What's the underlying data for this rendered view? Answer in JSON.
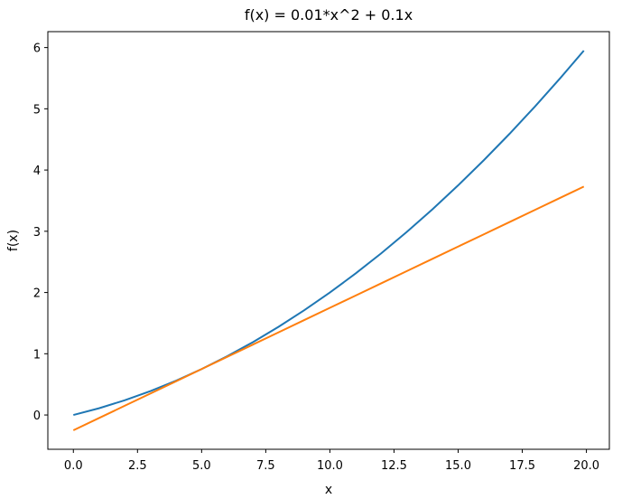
{
  "chart_data": {
    "type": "line",
    "title": "f(x) = 0.01*x^2 + 0.1x",
    "xlabel": "x",
    "ylabel": "f(x)",
    "x": [
      0,
      1,
      2,
      3,
      4,
      5,
      6,
      7,
      8,
      9,
      10,
      11,
      12,
      13,
      14,
      15,
      16,
      17,
      18,
      19,
      19.9
    ],
    "series": [
      {
        "color": "#1f77b4",
        "values": [
          0,
          0.11,
          0.24,
          0.39,
          0.56,
          0.75,
          0.96,
          1.19,
          1.44,
          1.71,
          2.0,
          2.31,
          2.64,
          2.99,
          3.36,
          3.75,
          4.16,
          4.59,
          5.04,
          5.51,
          5.9501
        ]
      },
      {
        "color": "#ff7f0e",
        "values": [
          -0.25,
          -0.05,
          0.15,
          0.35,
          0.55,
          0.75,
          0.95,
          1.15,
          1.35,
          1.55,
          1.75,
          1.95,
          2.15,
          2.35,
          2.55,
          2.75,
          2.95,
          3.15,
          3.35,
          3.55,
          3.73
        ]
      }
    ],
    "xlim": [
      -0.995,
      20.895
    ],
    "ylim": [
      -0.56,
      6.26
    ],
    "xticks": [
      {
        "value": 0,
        "label": "0.0"
      },
      {
        "value": 2.5,
        "label": "2.5"
      },
      {
        "value": 5,
        "label": "5.0"
      },
      {
        "value": 7.5,
        "label": "7.5"
      },
      {
        "value": 10,
        "label": "10.0"
      },
      {
        "value": 12.5,
        "label": "12.5"
      },
      {
        "value": 15,
        "label": "15.0"
      },
      {
        "value": 17.5,
        "label": "17.5"
      },
      {
        "value": 20,
        "label": "20.0"
      }
    ],
    "yticks": [
      0,
      1,
      2,
      3,
      4,
      5,
      6
    ]
  }
}
